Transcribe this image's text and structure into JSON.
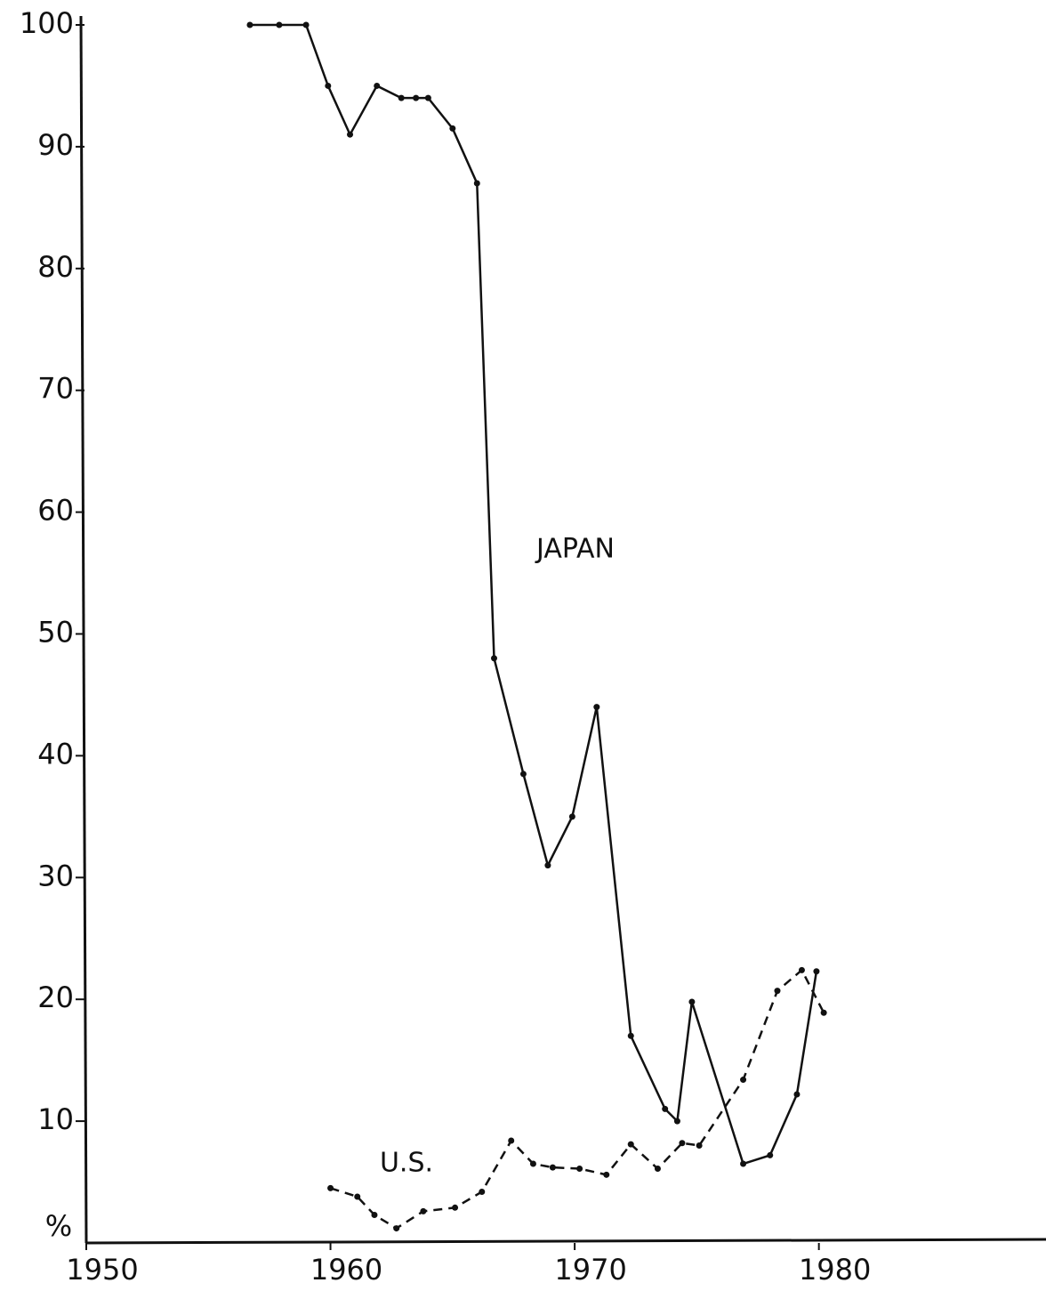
{
  "chart_data": {
    "type": "line",
    "y_label": "%",
    "xlim": [
      1950,
      1989.3
    ],
    "xticks": [
      1950,
      1960,
      1970,
      1980
    ],
    "ylim": [
      0,
      100
    ],
    "yticks": [
      10,
      20,
      30,
      40,
      50,
      60,
      70,
      80,
      90,
      100
    ],
    "series": [
      {
        "name": "JAPAN",
        "color": "#111111",
        "dash": false,
        "x": [
          1956.7,
          1957.9,
          1959.0,
          1959.9,
          1960.8,
          1961.9,
          1962.9,
          1963.5,
          1964.0,
          1965.0,
          1966.0,
          1966.7,
          1967.9,
          1968.9,
          1969.9,
          1970.9,
          1972.3,
          1973.7,
          1974.2,
          1974.8,
          1976.9,
          1978.0,
          1979.1,
          1979.9
        ],
        "values": [
          100,
          100,
          100,
          95,
          91,
          95,
          94,
          94,
          94,
          91.5,
          87,
          48,
          38.5,
          31,
          35,
          44,
          17,
          11,
          10,
          19.8,
          6.5,
          7.2,
          12.2,
          22.3
        ]
      },
      {
        "name": "U.S.",
        "color": "#111111",
        "dash": true,
        "x": [
          1960.0,
          1961.1,
          1961.8,
          1962.7,
          1963.8,
          1965.1,
          1966.2,
          1967.4,
          1968.3,
          1969.1,
          1970.2,
          1971.3,
          1972.3,
          1973.4,
          1974.4,
          1975.1,
          1976.9,
          1978.3,
          1979.3,
          1980.2
        ],
        "values": [
          4.5,
          3.8,
          2.3,
          1.2,
          2.6,
          2.9,
          4.2,
          8.4,
          6.5,
          6.2,
          6.1,
          5.6,
          8.1,
          6.1,
          8.2,
          8,
          13.4,
          20.7,
          22.4,
          18.9
        ]
      }
    ]
  }
}
